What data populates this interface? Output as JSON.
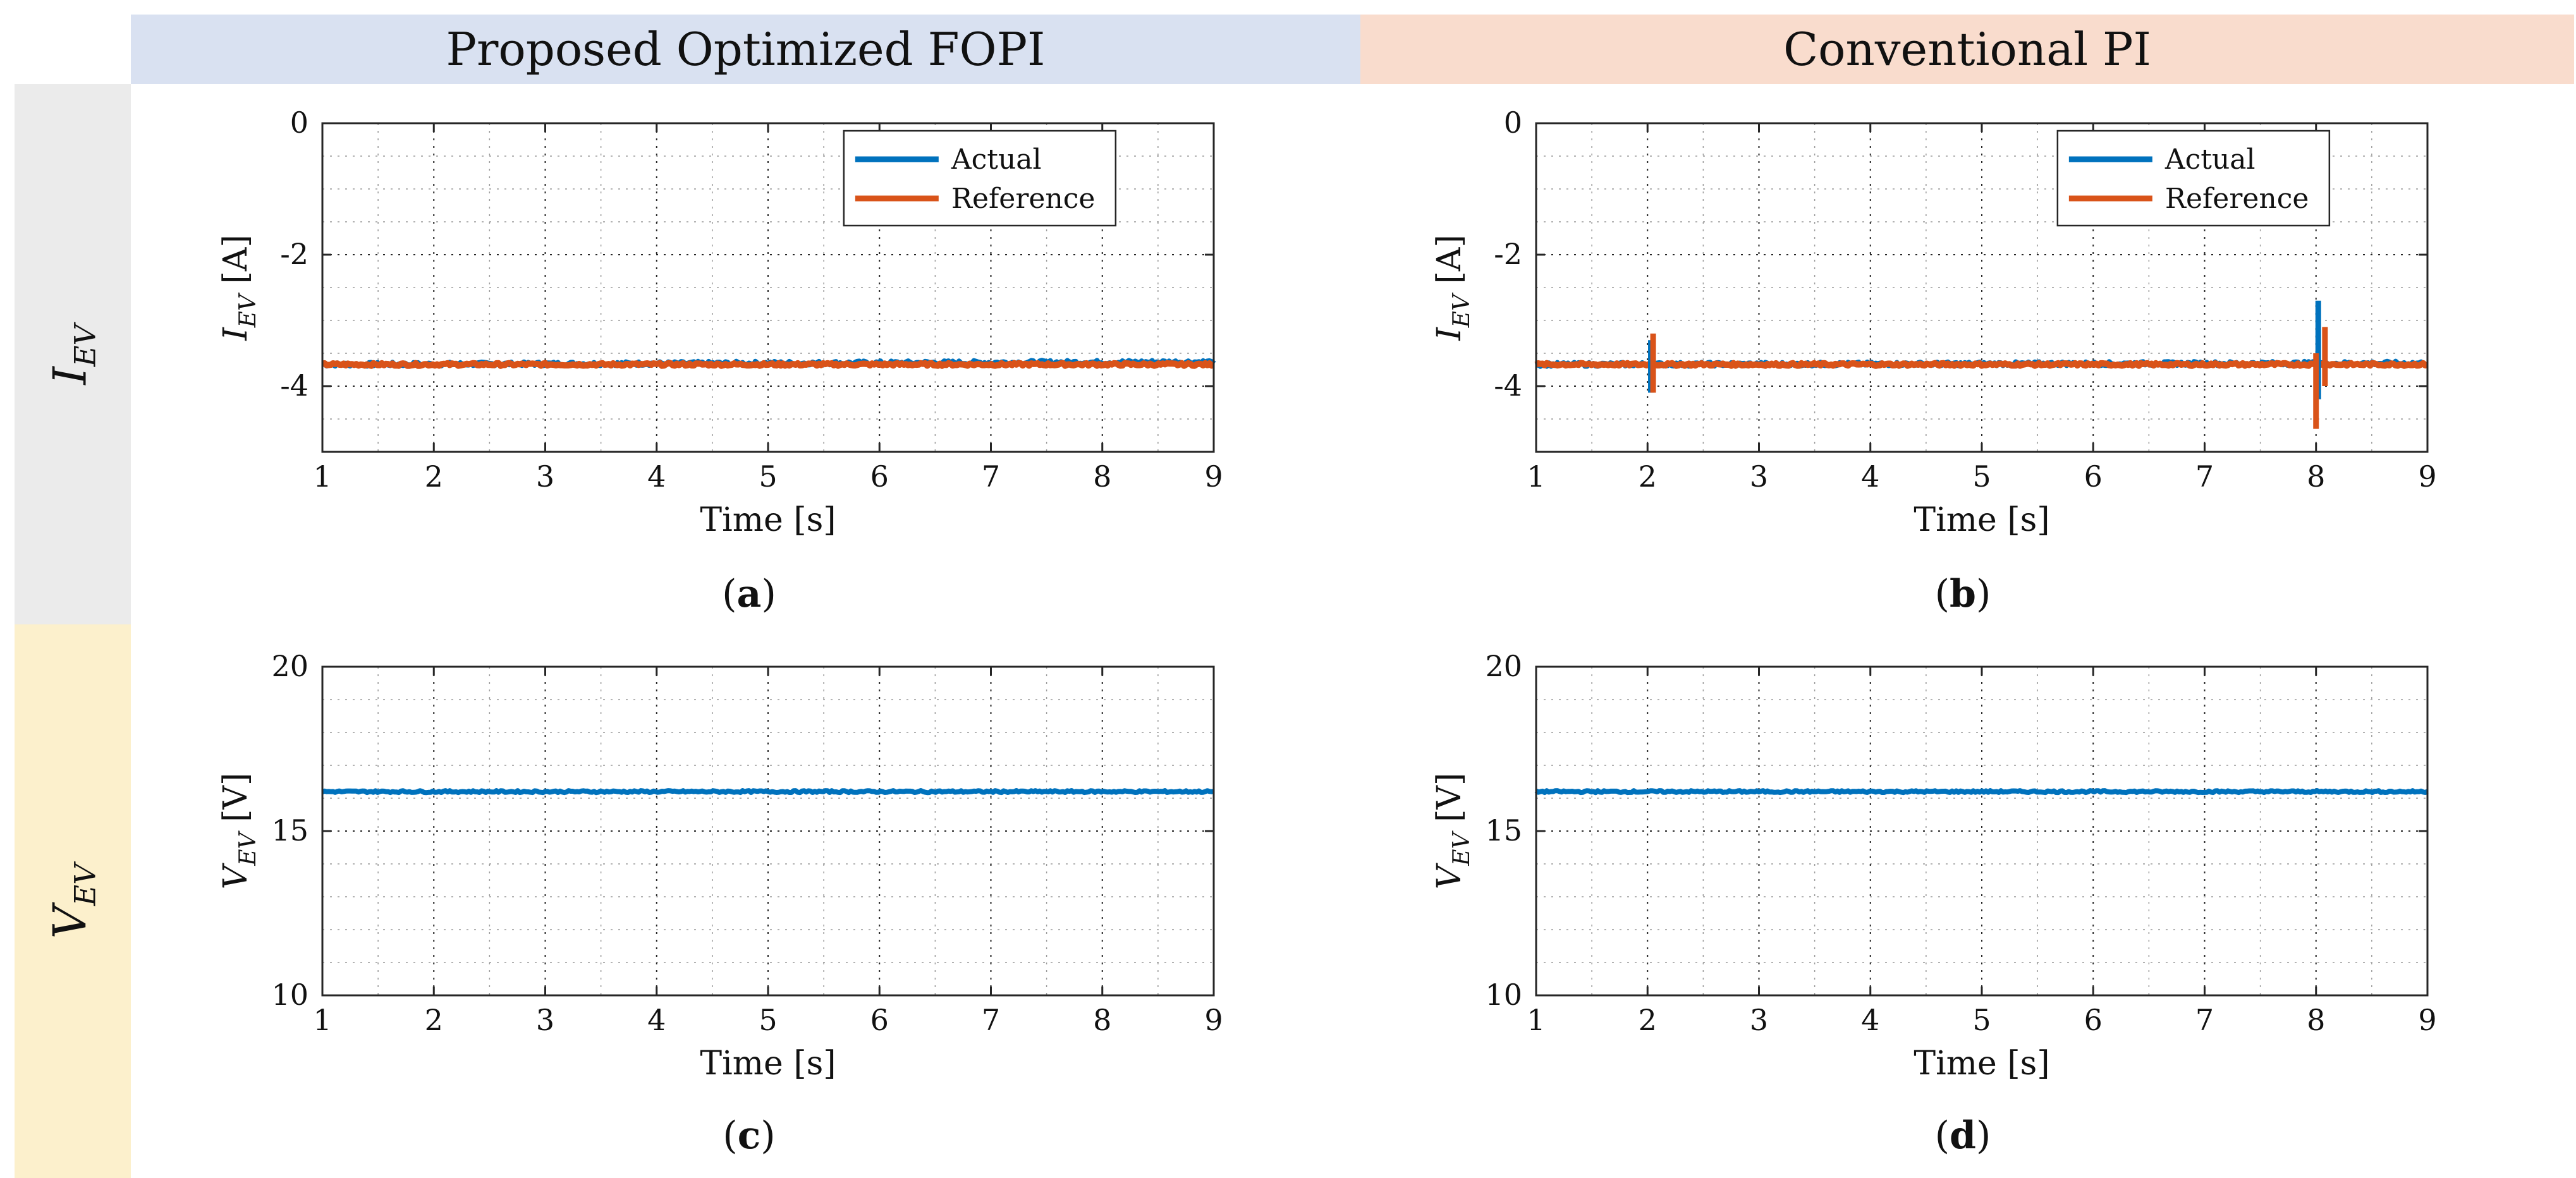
{
  "headers": {
    "fopi": "Proposed Optimized FOPI",
    "pi": "Conventional PI"
  },
  "rows": {
    "iev": {
      "symbol": "I",
      "sub": "EV"
    },
    "vev": {
      "symbol": "V",
      "sub": "EV"
    }
  },
  "colors": {
    "actual": "#0072BD",
    "reference": "#D95319",
    "header_fopi": "#d9e1f1",
    "header_pi": "#f9dccd",
    "row_iev": "#ebebeb",
    "row_vev": "#fcf0cc"
  },
  "chart_data": [
    {
      "id": "a",
      "type": "line",
      "caption": "a",
      "xlabel": "Time [s]",
      "ylabel": {
        "symbol": "I",
        "sub": "EV",
        "unit": "[A]"
      },
      "xlim": [
        1,
        9
      ],
      "ylim": [
        -5,
        0
      ],
      "xticks": [
        1,
        2,
        3,
        4,
        5,
        6,
        7,
        8,
        9
      ],
      "yticks": [
        0,
        -2,
        -4
      ],
      "grid": true,
      "legend": {
        "position": "top-right",
        "entries": [
          "Actual",
          "Reference"
        ]
      },
      "series": [
        {
          "name": "Actual",
          "color": "#0072BD",
          "x": [
            1,
            9
          ],
          "y": [
            -3.67,
            -3.63
          ],
          "noise": 0.03
        },
        {
          "name": "Reference",
          "color": "#D95319",
          "x": [
            1,
            9
          ],
          "y": [
            -3.67,
            -3.67
          ],
          "noise": 0.02
        }
      ],
      "spikes": []
    },
    {
      "id": "b",
      "type": "line",
      "caption": "b",
      "xlabel": "Time [s]",
      "ylabel": {
        "symbol": "I",
        "sub": "EV",
        "unit": "[A]"
      },
      "xlim": [
        1,
        9
      ],
      "ylim": [
        -5,
        0
      ],
      "xticks": [
        1,
        2,
        3,
        4,
        5,
        6,
        7,
        8,
        9
      ],
      "yticks": [
        0,
        -2,
        -4
      ],
      "grid": true,
      "legend": {
        "position": "top-right",
        "entries": [
          "Actual",
          "Reference"
        ]
      },
      "series": [
        {
          "name": "Actual",
          "color": "#0072BD",
          "x": [
            1,
            9
          ],
          "y": [
            -3.67,
            -3.65
          ],
          "noise": 0.03
        },
        {
          "name": "Reference",
          "color": "#D95319",
          "x": [
            1,
            9
          ],
          "y": [
            -3.67,
            -3.67
          ],
          "noise": 0.02
        }
      ],
      "spikes": [
        {
          "series": "Actual",
          "x": 2.03,
          "y_min": -4.1,
          "y_max": -3.3
        },
        {
          "series": "Reference",
          "x": 2.05,
          "y_min": -4.1,
          "y_max": -3.2
        },
        {
          "series": "Actual",
          "x": 8.02,
          "y_min": -4.2,
          "y_max": -2.7
        },
        {
          "series": "Reference",
          "x": 8.0,
          "y_min": -4.65,
          "y_max": -3.5
        },
        {
          "series": "Reference",
          "x": 8.08,
          "y_min": -4.0,
          "y_max": -3.1
        }
      ]
    },
    {
      "id": "c",
      "type": "line",
      "caption": "c",
      "xlabel": "Time [s]",
      "ylabel": {
        "symbol": "V",
        "sub": "EV",
        "unit": "[V]"
      },
      "xlim": [
        1,
        9
      ],
      "ylim": [
        10,
        20
      ],
      "xticks": [
        1,
        2,
        3,
        4,
        5,
        6,
        7,
        8,
        9
      ],
      "yticks": [
        20,
        15,
        10
      ],
      "grid": true,
      "legend": null,
      "series": [
        {
          "name": "Actual",
          "color": "#0072BD",
          "x": [
            1,
            9
          ],
          "y": [
            16.2,
            16.2
          ],
          "noise": 0.03
        }
      ],
      "spikes": []
    },
    {
      "id": "d",
      "type": "line",
      "caption": "d",
      "xlabel": "Time [s]",
      "ylabel": {
        "symbol": "V",
        "sub": "EV",
        "unit": "[V]"
      },
      "xlim": [
        1,
        9
      ],
      "ylim": [
        10,
        20
      ],
      "xticks": [
        1,
        2,
        3,
        4,
        5,
        6,
        7,
        8,
        9
      ],
      "yticks": [
        20,
        15,
        10
      ],
      "grid": true,
      "legend": null,
      "series": [
        {
          "name": "Actual",
          "color": "#0072BD",
          "x": [
            1,
            9
          ],
          "y": [
            16.2,
            16.2
          ],
          "noise": 0.03
        }
      ],
      "spikes": []
    }
  ]
}
